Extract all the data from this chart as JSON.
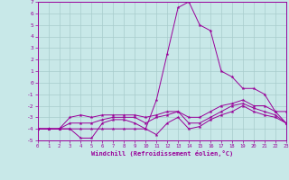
{
  "xlabel": "Windchill (Refroidissement éolien,°C)",
  "xlim": [
    0,
    23
  ],
  "ylim": [
    -5,
    7
  ],
  "xticks": [
    0,
    1,
    2,
    3,
    4,
    5,
    6,
    7,
    8,
    9,
    10,
    11,
    12,
    13,
    14,
    15,
    16,
    17,
    18,
    19,
    20,
    21,
    22,
    23
  ],
  "yticks": [
    -5,
    -4,
    -3,
    -2,
    -1,
    0,
    1,
    2,
    3,
    4,
    5,
    6,
    7
  ],
  "bg_color": "#c8e8e8",
  "grid_color": "#a8cccc",
  "line_color": "#990099",
  "lines": [
    {
      "x": [
        0,
        1,
        2,
        3,
        4,
        5,
        6,
        7,
        8,
        9,
        10,
        11,
        12,
        13,
        14,
        15,
        16,
        17,
        18,
        19,
        20,
        21,
        22,
        23
      ],
      "y": [
        -4,
        -4,
        -4,
        -4,
        -4,
        -4,
        -4,
        -4,
        -4,
        -4,
        -4,
        -1.5,
        2.5,
        6.5,
        7,
        5,
        4.5,
        1,
        0.5,
        -0.5,
        -0.5,
        -1,
        -2.5,
        -2.5
      ]
    },
    {
      "x": [
        0,
        1,
        2,
        3,
        4,
        5,
        6,
        7,
        8,
        9,
        10,
        11,
        12,
        13,
        14,
        15,
        16,
        17,
        18,
        19,
        20,
        21,
        22,
        23
      ],
      "y": [
        -4,
        -4,
        -4,
        -3,
        -2.8,
        -3,
        -2.8,
        -2.8,
        -2.8,
        -2.8,
        -3,
        -2.8,
        -2.5,
        -2.5,
        -3,
        -3,
        -2.5,
        -2,
        -1.8,
        -1.5,
        -2,
        -2,
        -2.5,
        -3.5
      ]
    },
    {
      "x": [
        0,
        1,
        2,
        3,
        4,
        5,
        6,
        7,
        8,
        9,
        10,
        11,
        12,
        13,
        14,
        15,
        16,
        17,
        18,
        19,
        20,
        21,
        22,
        23
      ],
      "y": [
        -4,
        -4,
        -4,
        -3.5,
        -3.5,
        -3.5,
        -3.2,
        -3,
        -3,
        -3,
        -3.5,
        -3,
        -2.8,
        -2.5,
        -3.5,
        -3.5,
        -3,
        -2.5,
        -2,
        -1.8,
        -2.2,
        -2.5,
        -2.8,
        -3.5
      ]
    },
    {
      "x": [
        0,
        1,
        2,
        3,
        4,
        5,
        6,
        7,
        8,
        9,
        10,
        11,
        12,
        13,
        14,
        15,
        16,
        17,
        18,
        19,
        20,
        21,
        22,
        23
      ],
      "y": [
        -4,
        -4,
        -4,
        -4,
        -4.8,
        -4.8,
        -3.5,
        -3.2,
        -3.2,
        -3.5,
        -4,
        -4.5,
        -3.5,
        -3,
        -4,
        -3.8,
        -3.2,
        -2.8,
        -2.5,
        -2,
        -2.5,
        -2.8,
        -3,
        -3.5
      ]
    }
  ]
}
